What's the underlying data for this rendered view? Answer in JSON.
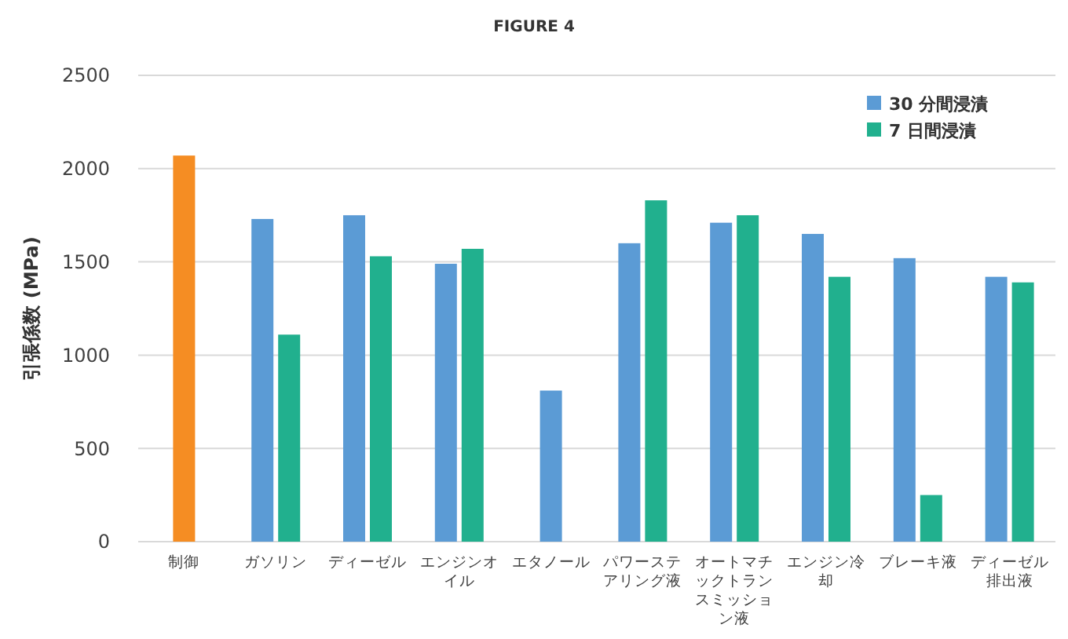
{
  "chart_data": {
    "type": "bar",
    "title": "FIGURE 4",
    "ylabel": "引張係数 (MPa)",
    "categories": [
      "制御",
      "ガソリン",
      "ディーゼル",
      "エンジンオイル",
      "エタノール",
      "パワーステアリング液",
      "オートマチックトランスミッション液",
      "エンジン冷却",
      "ブレーキ液",
      "ディーゼル排出液"
    ],
    "series": [
      {
        "color": "#f58d23",
        "values": [
          2070,
          null,
          null,
          null,
          null,
          null,
          null,
          null,
          null,
          null
        ]
      },
      {
        "name": "30 分間浸漬",
        "color": "#5b9bd5",
        "values": [
          null,
          1730,
          1750,
          1490,
          810,
          1600,
          1710,
          1650,
          1520,
          1420
        ]
      },
      {
        "name": "7 日間浸漬",
        "color": "#21b08e",
        "values": [
          null,
          1110,
          1530,
          1570,
          null,
          1830,
          1750,
          1420,
          250,
          1390
        ]
      }
    ],
    "ylim": [
      0,
      2500
    ],
    "yticks": [
      0,
      500,
      1000,
      1500,
      2000,
      2500
    ],
    "grid": "y",
    "legend": "top right"
  }
}
